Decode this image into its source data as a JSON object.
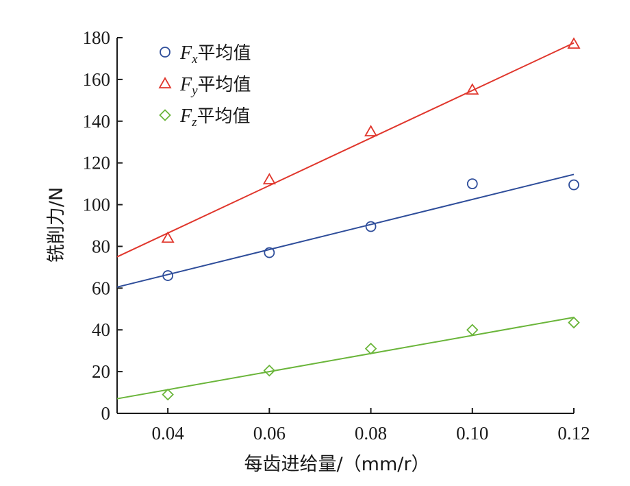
{
  "chart_data": {
    "type": "scatter",
    "title": "",
    "xlabel": "每齿进给量/（mm/r）",
    "ylabel": "铣削力/N",
    "xlim": [
      0.03,
      0.12
    ],
    "ylim": [
      0,
      180
    ],
    "xticks": [
      "0.04",
      "0.06",
      "0.08",
      "0.10",
      "0.12"
    ],
    "xtick_values": [
      0.04,
      0.06,
      0.08,
      0.1,
      0.12
    ],
    "yticks": [
      "0",
      "20",
      "40",
      "60",
      "80",
      "100",
      "120",
      "140",
      "160",
      "180"
    ],
    "ytick_values": [
      0,
      20,
      40,
      60,
      80,
      100,
      120,
      140,
      160,
      180
    ],
    "grid": false,
    "legend_position": "top-left",
    "series": [
      {
        "name": "Fx平均值",
        "symbol": "F",
        "subscript": "x",
        "suffix": "平均值",
        "marker": "circle",
        "color": "#2e4d9a",
        "x": [
          0.04,
          0.06,
          0.08,
          0.1,
          0.12
        ],
        "y": [
          66,
          77,
          89.5,
          110,
          109.5
        ],
        "fit": {
          "x": [
            0.03,
            0.12
          ],
          "y": [
            60.5,
            114.5
          ]
        }
      },
      {
        "name": "Fy平均值",
        "symbol": "F",
        "subscript": "y",
        "suffix": "平均值",
        "marker": "triangle",
        "color": "#e0362c",
        "x": [
          0.04,
          0.06,
          0.08,
          0.1,
          0.12
        ],
        "y": [
          84,
          112,
          135,
          155,
          177
        ],
        "fit": {
          "x": [
            0.03,
            0.12
          ],
          "y": [
            75,
            177.5
          ]
        }
      },
      {
        "name": "Fz平均值",
        "symbol": "F",
        "subscript": "z",
        "suffix": "平均值",
        "marker": "diamond",
        "color": "#6ab53a",
        "x": [
          0.04,
          0.06,
          0.08,
          0.1,
          0.12
        ],
        "y": [
          9,
          20.5,
          31,
          40,
          43.5
        ],
        "fit": {
          "x": [
            0.03,
            0.12
          ],
          "y": [
            7,
            46
          ]
        }
      }
    ]
  }
}
